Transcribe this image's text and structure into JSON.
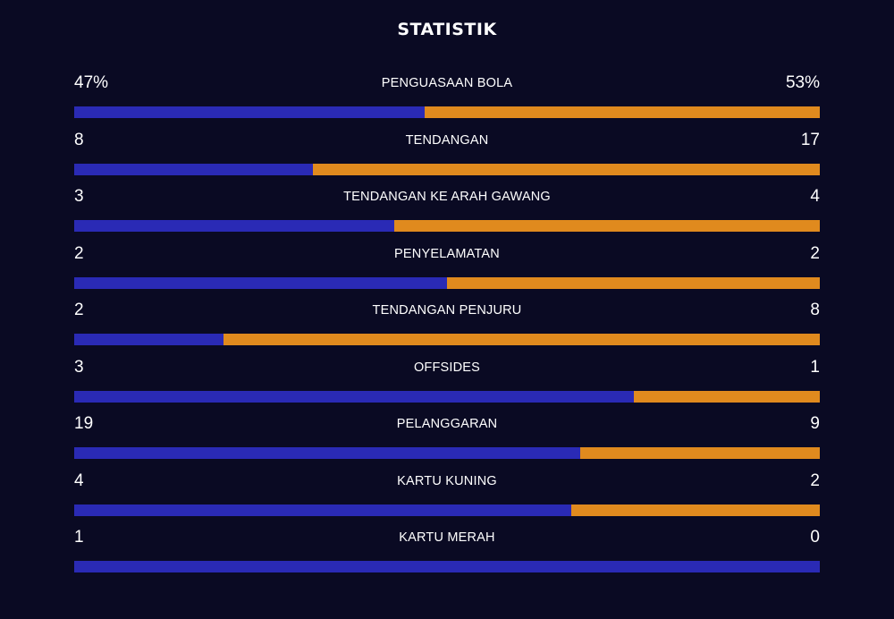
{
  "title": "STATISTIK",
  "colors": {
    "background": "#0a0a23",
    "home_bar": "#2a2ab5",
    "away_bar": "#e08a1e",
    "text": "#ffffff"
  },
  "stats": [
    {
      "label": "PENGUASAAN BOLA",
      "home": "47%",
      "away": "53%",
      "home_share": 0.47
    },
    {
      "label": "TENDANGAN",
      "home": "8",
      "away": "17",
      "home_share": 0.32
    },
    {
      "label": "TENDANGAN KE ARAH GAWANG",
      "home": "3",
      "away": "4",
      "home_share": 0.429
    },
    {
      "label": "PENYELAMATAN",
      "home": "2",
      "away": "2",
      "home_share": 0.5
    },
    {
      "label": "TENDANGAN PENJURU",
      "home": "2",
      "away": "8",
      "home_share": 0.2
    },
    {
      "label": "OFFSIDES",
      "home": "3",
      "away": "1",
      "home_share": 0.75
    },
    {
      "label": "PELANGGARAN",
      "home": "19",
      "away": "9",
      "home_share": 0.679
    },
    {
      "label": "KARTU KUNING",
      "home": "4",
      "away": "2",
      "home_share": 0.667
    },
    {
      "label": "KARTU MERAH",
      "home": "1",
      "away": "0",
      "home_share": 1.0
    }
  ]
}
